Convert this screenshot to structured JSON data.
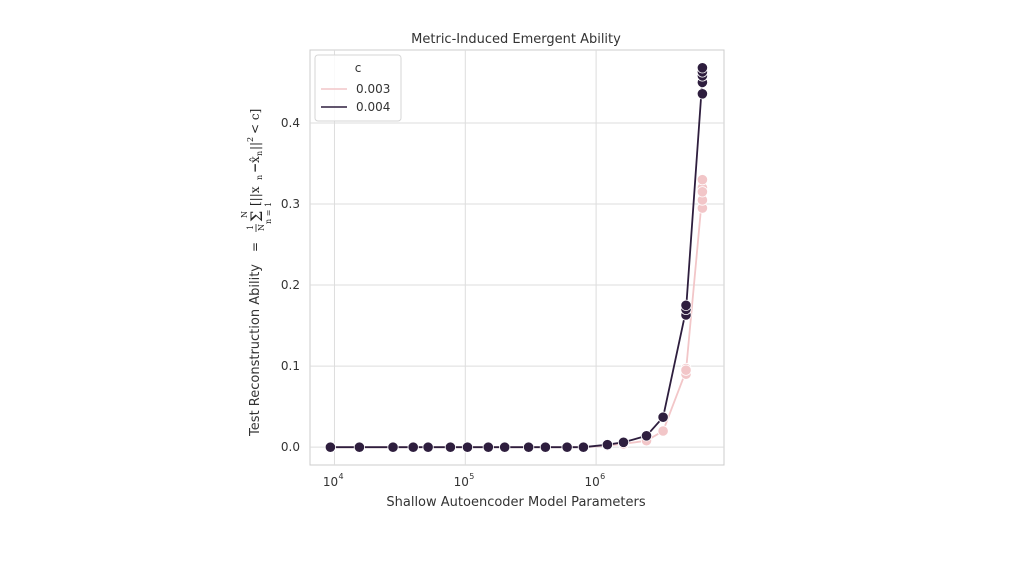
{
  "chart_data": {
    "type": "line",
    "title": "Metric-Induced Emergent Ability",
    "xlabel": "Shallow Autoencoder Model Parameters",
    "ylabel": "Test Reconstruction Ability",
    "ylabel_formula": {
      "equals": "=",
      "frac_num": "1",
      "frac_den": "N",
      "sum_symbol": "Σ",
      "sum_top": "N",
      "sum_bottom": "n = 1",
      "body": "[||x",
      "sub_n": "n",
      "minus": "−",
      "xhat": "x̂",
      "sub_n2": "n",
      "norm_close": "||",
      "sq": "2",
      "tail": "< c]"
    },
    "xscale": "log",
    "xlim": [
      6500,
      9500000
    ],
    "ylim": [
      -0.022,
      0.49
    ],
    "x_ticks": [
      {
        "base": "10",
        "exp": "4",
        "value": 10000
      },
      {
        "base": "10",
        "exp": "5",
        "value": 100000
      },
      {
        "base": "10",
        "exp": "6",
        "value": 1000000
      }
    ],
    "y_ticks": [
      {
        "label": "0.0",
        "value": 0.0
      },
      {
        "label": "0.1",
        "value": 0.1
      },
      {
        "label": "0.2",
        "value": 0.2
      },
      {
        "label": "0.3",
        "value": 0.3
      },
      {
        "label": "0.4",
        "value": 0.4
      }
    ],
    "grid": true,
    "legend": {
      "title": "c",
      "placement": "top-left",
      "entries": [
        "0.003",
        "0.004"
      ]
    },
    "series": [
      {
        "name": "0.003",
        "color": "#f2c6c8",
        "x": [
          9300,
          15500,
          28000,
          40000,
          52000,
          77000,
          104000,
          150000,
          200000,
          305000,
          410000,
          600000,
          800000,
          1220000,
          1620000,
          2430000,
          3250000,
          4870000,
          4870000,
          4870000,
          6500000,
          6500000,
          6500000,
          6500000,
          6500000
        ],
        "y": [
          0.0,
          0.0,
          0.0,
          0.0,
          0.0,
          0.0,
          0.0,
          0.0,
          0.0,
          0.0,
          0.0,
          0.0,
          0.0,
          0.002,
          0.004,
          0.008,
          0.02,
          0.09,
          0.097,
          0.095,
          0.295,
          0.305,
          0.32,
          0.33,
          0.315
        ],
        "line": [
          [
            9300,
            0.0
          ],
          [
            15500,
            0.0
          ],
          [
            28000,
            0.0
          ],
          [
            40000,
            0.0
          ],
          [
            52000,
            0.0
          ],
          [
            77000,
            0.0
          ],
          [
            104000,
            0.0
          ],
          [
            150000,
            0.0
          ],
          [
            200000,
            0.0
          ],
          [
            305000,
            0.0
          ],
          [
            410000,
            0.0
          ],
          [
            600000,
            0.0
          ],
          [
            800000,
            0.0
          ],
          [
            1220000,
            0.002
          ],
          [
            1620000,
            0.004
          ],
          [
            2430000,
            0.008
          ],
          [
            3250000,
            0.02
          ],
          [
            4870000,
            0.094
          ],
          [
            6500000,
            0.313
          ]
        ]
      },
      {
        "name": "0.004",
        "color": "#2e1e3e",
        "x": [
          9300,
          15500,
          28000,
          40000,
          52000,
          77000,
          104000,
          150000,
          200000,
          305000,
          410000,
          600000,
          800000,
          1220000,
          1620000,
          2430000,
          3250000,
          4870000,
          4870000,
          4870000,
          6500000,
          6500000,
          6500000,
          6500000,
          6500000
        ],
        "y": [
          0.0,
          0.0,
          0.0,
          0.0,
          0.0,
          0.0,
          0.0,
          0.0,
          0.0,
          0.0,
          0.0,
          0.0,
          0.0,
          0.003,
          0.006,
          0.014,
          0.037,
          0.163,
          0.17,
          0.175,
          0.436,
          0.45,
          0.458,
          0.463,
          0.468
        ],
        "line": [
          [
            9300,
            0.0
          ],
          [
            15500,
            0.0
          ],
          [
            28000,
            0.0
          ],
          [
            40000,
            0.0
          ],
          [
            52000,
            0.0
          ],
          [
            77000,
            0.0
          ],
          [
            104000,
            0.0
          ],
          [
            150000,
            0.0
          ],
          [
            200000,
            0.0
          ],
          [
            305000,
            0.0
          ],
          [
            410000,
            0.0
          ],
          [
            600000,
            0.0
          ],
          [
            800000,
            0.0
          ],
          [
            1220000,
            0.003
          ],
          [
            1620000,
            0.006
          ],
          [
            2430000,
            0.014
          ],
          [
            3250000,
            0.037
          ],
          [
            4870000,
            0.169
          ],
          [
            6500000,
            0.455
          ]
        ]
      }
    ]
  }
}
